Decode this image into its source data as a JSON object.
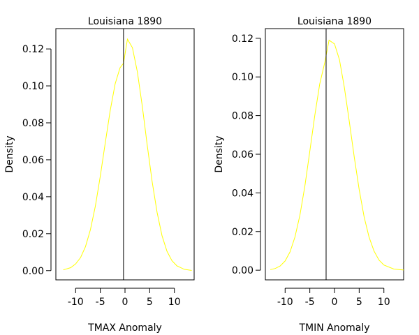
{
  "chart_data": [
    {
      "type": "line",
      "title": "Louisiana 1890",
      "xlabel": "TMAX Anomaly",
      "ylabel": "Density",
      "xlim": [
        -14,
        14
      ],
      "ylim": [
        -0.005,
        0.131
      ],
      "xticks": [
        -10,
        -5,
        0,
        5,
        10
      ],
      "yticks": [
        0.0,
        0.02,
        0.04,
        0.06,
        0.08,
        0.1,
        0.12
      ],
      "ytick_labels": [
        "0.00",
        "0.02",
        "0.04",
        "0.06",
        "0.08",
        "0.10",
        "0.12"
      ],
      "series": [
        {
          "color": "#ffff00",
          "x": [
            -12.5,
            -11,
            -10,
            -9,
            -8,
            -7,
            -6,
            -5,
            -4,
            -3,
            -2,
            -1,
            -0.3,
            0.5,
            1.5,
            2.5,
            3.5,
            4.5,
            5.5,
            6.5,
            7.5,
            8.5,
            9.5,
            10.5,
            12,
            13.5
          ],
          "y": [
            0.0004,
            0.0016,
            0.0036,
            0.0071,
            0.013,
            0.0222,
            0.035,
            0.0511,
            0.0691,
            0.0866,
            0.1011,
            0.1098,
            0.1123,
            0.1253,
            0.1207,
            0.1076,
            0.0889,
            0.068,
            0.0481,
            0.0314,
            0.0189,
            0.0105,
            0.0054,
            0.0026,
            0.0007,
            0.0001
          ]
        }
      ],
      "vline": {
        "x": -0.3,
        "color": "#000000"
      }
    },
    {
      "type": "line",
      "title": "Louisiana 1890",
      "xlabel": "TMIN Anomaly",
      "ylabel": "Density",
      "xlim": [
        -14,
        14
      ],
      "ylim": [
        -0.005,
        0.125
      ],
      "xticks": [
        -10,
        -5,
        0,
        5,
        10
      ],
      "yticks": [
        0.0,
        0.02,
        0.04,
        0.06,
        0.08,
        0.1,
        0.12
      ],
      "ytick_labels": [
        "0.00",
        "0.02",
        "0.04",
        "0.06",
        "0.08",
        "0.10",
        "0.12"
      ],
      "series": [
        {
          "color": "#ffff00",
          "x": [
            -13,
            -12,
            -11,
            -10,
            -9,
            -8,
            -7,
            -6,
            -5,
            -4,
            -3,
            -2,
            -1.1,
            0,
            1,
            2,
            3,
            4,
            5,
            6,
            7,
            8,
            9,
            10,
            12,
            14
          ],
          "y": [
            0.0003,
            0.0009,
            0.0022,
            0.0048,
            0.0095,
            0.0172,
            0.0285,
            0.0436,
            0.0614,
            0.0799,
            0.0963,
            0.1072,
            0.119,
            0.1171,
            0.1089,
            0.0946,
            0.0769,
            0.0585,
            0.0416,
            0.0276,
            0.0171,
            0.0099,
            0.0053,
            0.0027,
            0.0006,
            0.0001
          ]
        }
      ],
      "vline": {
        "x": -1.7,
        "color": "#000000"
      }
    }
  ]
}
